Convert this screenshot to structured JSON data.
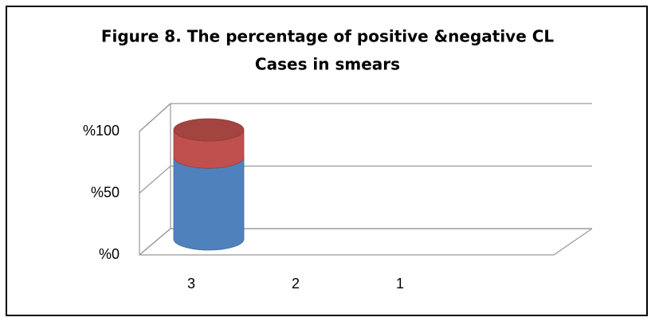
{
  "chart_data": {
    "type": "bar3d-cylinder-stacked",
    "title": [
      "Figure 8. The percentage of positive &negative CL",
      "Cases in smears"
    ],
    "categories": [
      "3",
      "2",
      "1"
    ],
    "series": [
      {
        "color": "#4f81bd",
        "values": [
          75,
          null,
          null
        ]
      },
      {
        "color": "#c0504d",
        "values": [
          25,
          null,
          null
        ]
      }
    ],
    "ylim": [
      0,
      100
    ],
    "yticks": [
      {
        "value": 0,
        "label": "%0"
      },
      {
        "value": 50,
        "label": "%50"
      },
      {
        "value": 100,
        "label": "%100"
      }
    ],
    "grid": true
  }
}
